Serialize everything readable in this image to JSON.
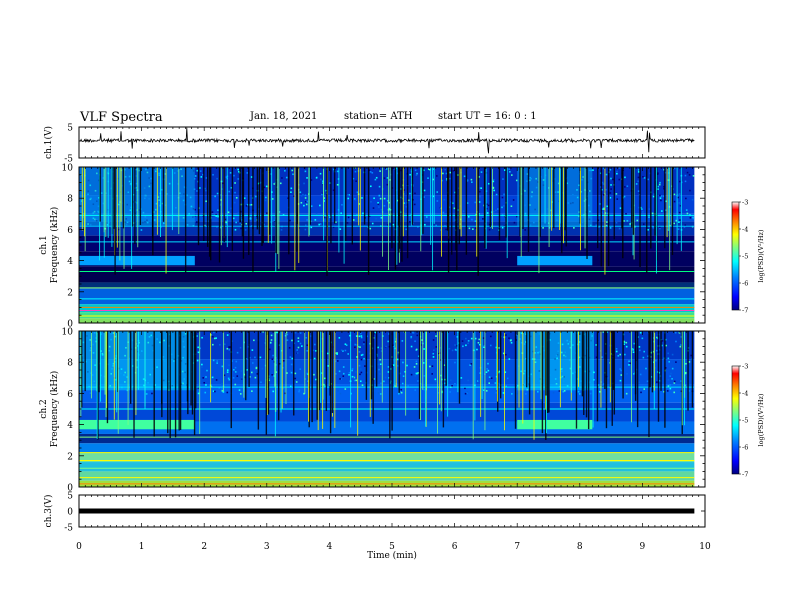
{
  "header": {
    "title": "VLF Spectra",
    "date": "Jan. 18, 2021",
    "station": "station= ATH",
    "start": "start  UT =   16: 0  : 1"
  },
  "chart_data": [
    {
      "type": "line",
      "name": "ch1_waveform",
      "ylabel": "ch.1(V)",
      "ylim": [
        -5,
        5
      ],
      "yticks": [
        "5",
        "-5"
      ],
      "xlim": [
        0,
        10
      ],
      "description_color": "#000000",
      "baseline": 0
    },
    {
      "type": "heatmap",
      "name": "ch1_spectrogram",
      "ylabel": "Frequency (kHz)",
      "ylabel_ch": "ch.1",
      "ylim": [
        0,
        10
      ],
      "yticks": [
        "0",
        "2",
        "4",
        "6",
        "8",
        "10"
      ],
      "xlim": [
        0,
        10
      ],
      "data_end_min": 9.83,
      "enhanced_band_segments_min": [
        [
          0,
          1.85
        ],
        [
          7.0,
          8.2
        ]
      ],
      "enhanced_band_khz": 4.0,
      "colorbar": {
        "label": "log(PSD)(V²/Hz)",
        "ticks": [
          "-3",
          "-4",
          "-5",
          "-6",
          "-7"
        ],
        "range": [
          -7,
          -3
        ]
      }
    },
    {
      "type": "heatmap",
      "name": "ch2_spectrogram",
      "ylabel": "Frequency (kHz)",
      "ylabel_ch": "ch.2",
      "ylim": [
        0,
        10
      ],
      "yticks": [
        "0",
        "2",
        "4",
        "6",
        "8",
        "10"
      ],
      "xlim": [
        0,
        10
      ],
      "data_end_min": 9.83,
      "enhanced_band_segments_min": [
        [
          0,
          1.85
        ],
        [
          7.0,
          8.2
        ]
      ],
      "enhanced_band_khz": 4.0,
      "colorbar": {
        "label": "log(PSD)(V²/Hz)",
        "ticks": [
          "-3",
          "-4",
          "-5",
          "-6",
          "-7"
        ],
        "range": [
          -7,
          -3
        ]
      }
    },
    {
      "type": "line",
      "name": "ch3_waveform",
      "ylabel": "ch.3(V)",
      "ylim": [
        -5,
        5
      ],
      "yticks": [
        "5",
        "0",
        "-5"
      ],
      "xlim": [
        0,
        10
      ],
      "baseline": 0
    }
  ],
  "xaxis": {
    "label": "Time (min)",
    "ticks": [
      "0",
      "1",
      "2",
      "3",
      "4",
      "5",
      "6",
      "7",
      "8",
      "9",
      "10"
    ]
  },
  "colormap": [
    "#000080",
    "#0000ff",
    "#0080ff",
    "#00ffff",
    "#80ff80",
    "#ffff00",
    "#ff8000",
    "#ff0000",
    "#ffffff"
  ]
}
